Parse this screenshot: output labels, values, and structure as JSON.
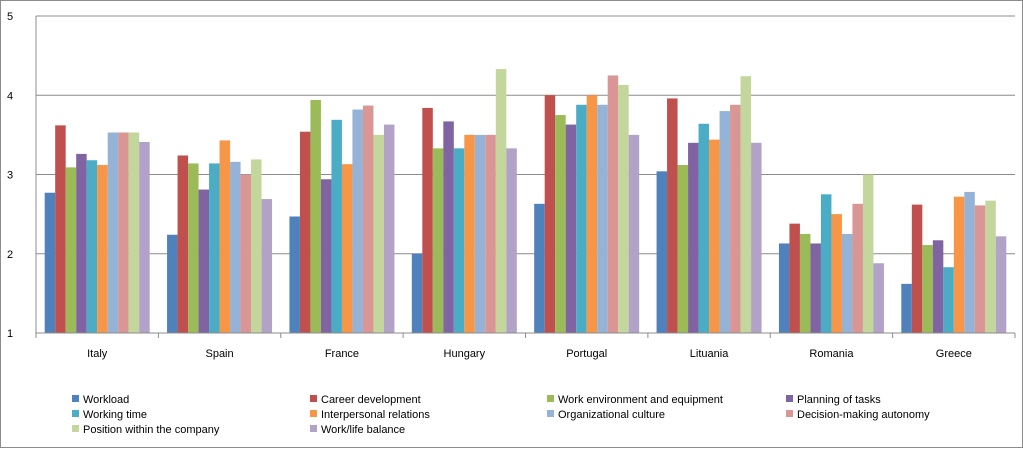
{
  "chart_data": {
    "type": "bar",
    "title": "",
    "xlabel": "",
    "ylabel": "",
    "ylim": [
      1,
      5
    ],
    "yticks": [
      "1",
      "2",
      "3",
      "4",
      "5"
    ],
    "grid": "horizontal",
    "legend_position": "bottom",
    "categories": [
      "Italy",
      "Spain",
      "France",
      "Hungary",
      "Portugal",
      "Lituania",
      "Romania",
      "Greece"
    ],
    "series": [
      {
        "name": "Workload",
        "color": "#4F81BD",
        "values": [
          2.77,
          2.24,
          2.47,
          2.0,
          2.63,
          3.04,
          2.13,
          1.62
        ]
      },
      {
        "name": "Career development",
        "color": "#C0504D",
        "values": [
          3.62,
          3.24,
          3.54,
          3.84,
          4.0,
          3.96,
          2.38,
          2.62
        ]
      },
      {
        "name": "Work environment and equipment",
        "color": "#9BBB59",
        "values": [
          3.09,
          3.14,
          3.94,
          3.33,
          3.75,
          3.12,
          2.25,
          2.11
        ]
      },
      {
        "name": "Planning of tasks",
        "color": "#8064A2",
        "values": [
          3.26,
          2.81,
          2.94,
          3.67,
          3.63,
          3.4,
          2.13,
          2.17
        ]
      },
      {
        "name": "Working time",
        "color": "#4BACC6",
        "values": [
          3.18,
          3.14,
          3.69,
          3.33,
          3.88,
          3.64,
          2.75,
          1.83
        ]
      },
      {
        "name": "Interpersonal relations",
        "color": "#F79646",
        "values": [
          3.12,
          3.43,
          3.13,
          3.5,
          4.0,
          3.44,
          2.5,
          2.72
        ]
      },
      {
        "name": "Organizational culture",
        "color": "#95B3D7",
        "values": [
          3.53,
          3.16,
          3.82,
          3.5,
          3.88,
          3.8,
          2.25,
          2.78
        ]
      },
      {
        "name": "Decision-making autonomy",
        "color": "#D99694",
        "values": [
          3.53,
          3.0,
          3.87,
          3.5,
          4.25,
          3.88,
          2.63,
          2.61
        ]
      },
      {
        "name": "Position within the company",
        "color": "#C3D69B",
        "values": [
          3.53,
          3.19,
          3.5,
          4.33,
          4.13,
          4.24,
          3.0,
          2.67
        ]
      },
      {
        "name": "Work/life balance",
        "color": "#B2A2C7",
        "values": [
          3.41,
          2.69,
          3.63,
          3.33,
          3.5,
          3.4,
          1.88,
          2.22
        ]
      }
    ]
  }
}
